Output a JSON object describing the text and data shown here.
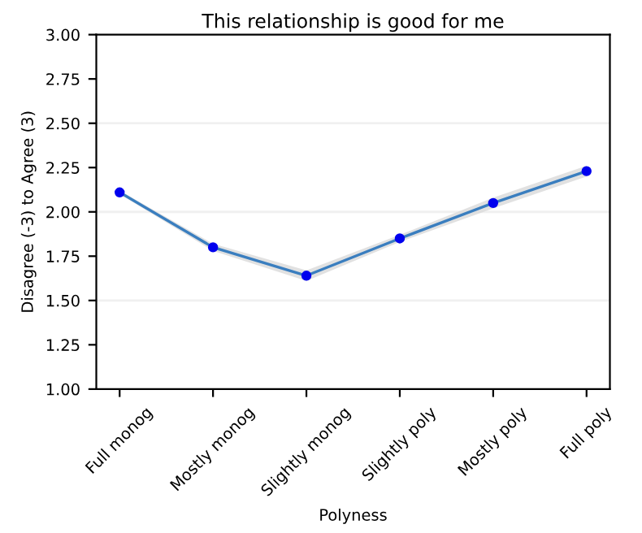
{
  "chart_data": {
    "type": "line",
    "title": "This relationship is good for me",
    "xlabel": "Polyness",
    "ylabel": "Disagree (-3) to Agree (3)",
    "categories": [
      "Full monog",
      "Mostly monog",
      "Slightly monog",
      "Slightly poly",
      "Mostly poly",
      "Full poly"
    ],
    "series": [
      {
        "color": "#3a7ebf",
        "values": [
          2.11,
          1.8,
          1.64,
          1.85,
          2.05,
          2.23
        ],
        "lower": [
          2.1,
          1.78,
          1.61,
          1.83,
          2.02,
          2.2
        ],
        "upper": [
          2.12,
          1.82,
          1.67,
          1.87,
          2.08,
          2.26
        ]
      },
      {
        "type": "scatter",
        "color": "#0000ee",
        "marker": "circle",
        "values": [
          2.11,
          1.8,
          1.64,
          1.85,
          2.05,
          2.23
        ]
      }
    ],
    "ylim": [
      1.0,
      3.0
    ],
    "yticks": [
      {
        "value": 1.0,
        "label": "1.00"
      },
      {
        "value": 1.25,
        "label": "1.25"
      },
      {
        "value": 1.5,
        "label": "1.50"
      },
      {
        "value": 1.75,
        "label": "1.75"
      },
      {
        "value": 2.0,
        "label": "2.00"
      },
      {
        "value": 2.25,
        "label": "2.25"
      },
      {
        "value": 2.5,
        "label": "2.50"
      },
      {
        "value": 2.75,
        "label": "2.75"
      },
      {
        "value": 3.0,
        "label": "3.00"
      }
    ],
    "ref_lines": [
      {
        "axis": "y",
        "value": 1.5,
        "color": "#f0f0f0"
      },
      {
        "axis": "y",
        "value": 2.0,
        "color": "#f0f0f0"
      },
      {
        "axis": "y",
        "value": 2.5,
        "color": "#f0f0f0"
      }
    ],
    "grid": false,
    "legend": false
  }
}
